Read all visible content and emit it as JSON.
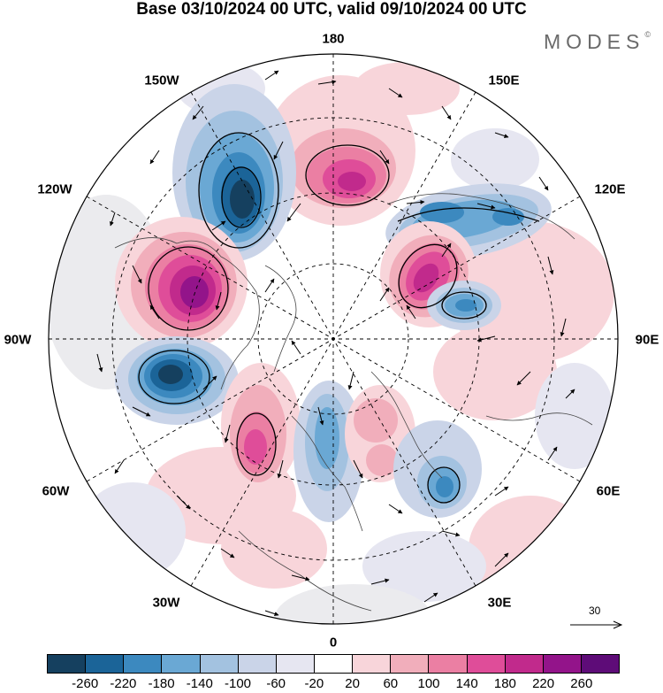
{
  "header": {
    "title": "Base 03/10/2024 00 UTC, valid 09/10/2024 00 UTC",
    "brand": "MODES",
    "brand_mark": "©"
  },
  "map": {
    "longitude_labels": [
      {
        "text": "180",
        "pos": "top"
      },
      {
        "text": "150E",
        "pos": "top-right"
      },
      {
        "text": "120E",
        "pos": "upper-right"
      },
      {
        "text": "90E",
        "pos": "right"
      },
      {
        "text": "60E",
        "pos": "lower-right"
      },
      {
        "text": "30E",
        "pos": "bottom-right"
      },
      {
        "text": "0",
        "pos": "bottom"
      },
      {
        "text": "30W",
        "pos": "bottom-left"
      },
      {
        "text": "60W",
        "pos": "lower-left"
      },
      {
        "text": "90W",
        "pos": "left"
      },
      {
        "text": "120W",
        "pos": "upper-left"
      },
      {
        "text": "150W",
        "pos": "top-left"
      }
    ],
    "reference_vector": {
      "value": "30"
    }
  },
  "colorbar": {
    "colors": [
      "#15405f",
      "#1b6498",
      "#3c89bf",
      "#6aa8d4",
      "#a3c2e0",
      "#cad4e8",
      "#e6e6f1",
      "#ffffff",
      "#f8d5da",
      "#f1aebb",
      "#eb7fa3",
      "#df4d99",
      "#c12a8c",
      "#93148a",
      "#5e0c78"
    ],
    "ticks": [
      "-260",
      "-220",
      "-180",
      "-140",
      "-100",
      "-60",
      "-20",
      "20",
      "60",
      "100",
      "140",
      "180",
      "220",
      "260"
    ]
  }
}
